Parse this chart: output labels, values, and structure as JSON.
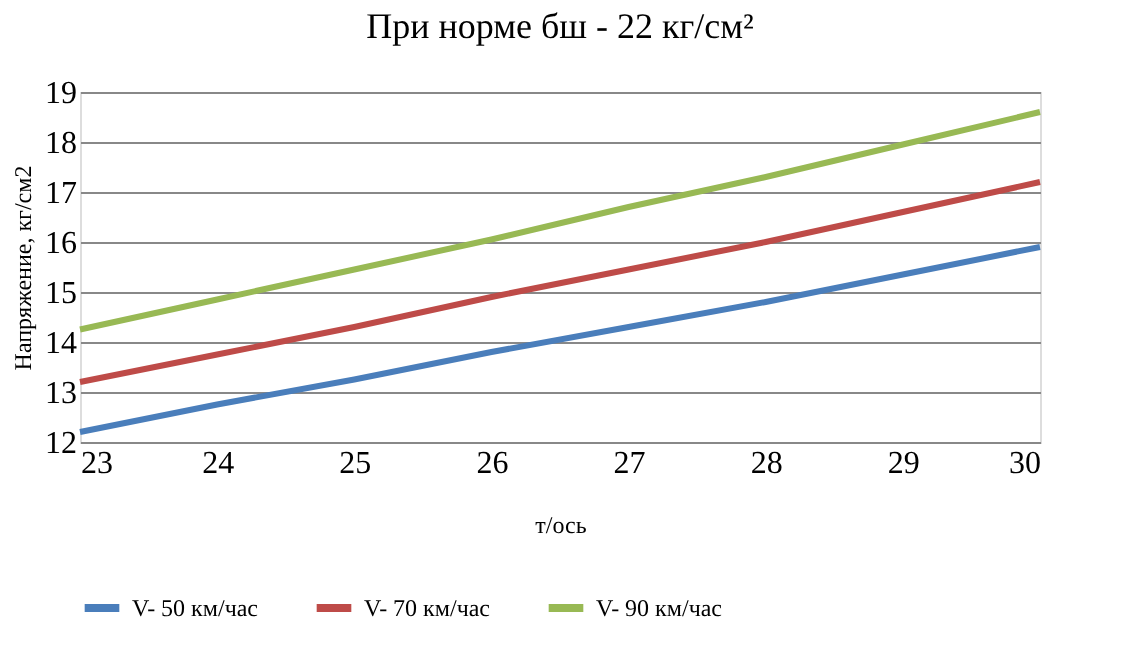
{
  "chart_data": {
    "type": "line",
    "title": "При норме бш  - 22 кг/см²",
    "xlabel": "т/ось",
    "ylabel": "Напряжение, кг/см2",
    "x": [
      23,
      24,
      25,
      26,
      27,
      28,
      29,
      30
    ],
    "series": [
      {
        "name": "V- 50 км/час",
        "color": "#4a7ebb",
        "values": [
          12.2,
          12.75,
          13.25,
          13.8,
          14.3,
          14.8,
          15.35,
          15.9
        ]
      },
      {
        "name": "V- 70 км/час",
        "color": "#be4b48",
        "values": [
          13.2,
          13.75,
          14.3,
          14.9,
          15.45,
          16.0,
          16.6,
          17.2
        ]
      },
      {
        "name": "V- 90 км/час",
        "color": "#98b954",
        "values": [
          14.25,
          14.85,
          15.45,
          16.05,
          16.7,
          17.3,
          17.95,
          18.6
        ]
      }
    ],
    "xlim": [
      23,
      30
    ],
    "xticks": [
      23,
      24,
      25,
      26,
      27,
      28,
      29,
      30
    ],
    "ylim": [
      12,
      19
    ],
    "yticks": [
      12,
      13,
      14,
      15,
      16,
      17,
      18,
      19
    ],
    "grid": "y",
    "legend": "bottom",
    "marker": "none",
    "line_style": "solid"
  }
}
